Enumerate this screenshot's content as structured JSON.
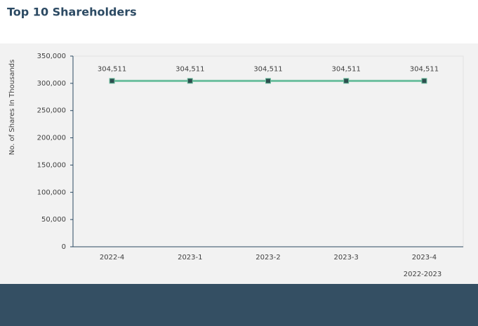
{
  "chart_data": {
    "type": "line",
    "title": "Top 10 Shareholders",
    "y_label": "No. of Shares In Thousands",
    "x_label": "2022-2023",
    "categories": [
      "2022-4",
      "2023-1",
      "2023-2",
      "2023-3",
      "2023-4"
    ],
    "values": [
      304511,
      304511,
      304511,
      304511,
      304511
    ],
    "value_labels": [
      "304,511",
      "304,511",
      "304,511",
      "304,511",
      "304,511"
    ],
    "color": "#6dbf9f",
    "marker_color": "#2d4f4f",
    "ylim": [
      0,
      350000
    ],
    "yticks": [
      0,
      {
        "value": 50000,
        "label": "50,000"
      },
      {
        "value": 100000,
        "label": "100,000"
      },
      {
        "value": 150000,
        "label": "150,000"
      },
      {
        "value": 200000,
        "label": "200,000"
      },
      {
        "value": 250000,
        "label": "250,000"
      },
      {
        "value": 300000,
        "label": "300,000"
      },
      {
        "value": 350000,
        "label": "350,000"
      }
    ],
    "grid": false
  }
}
